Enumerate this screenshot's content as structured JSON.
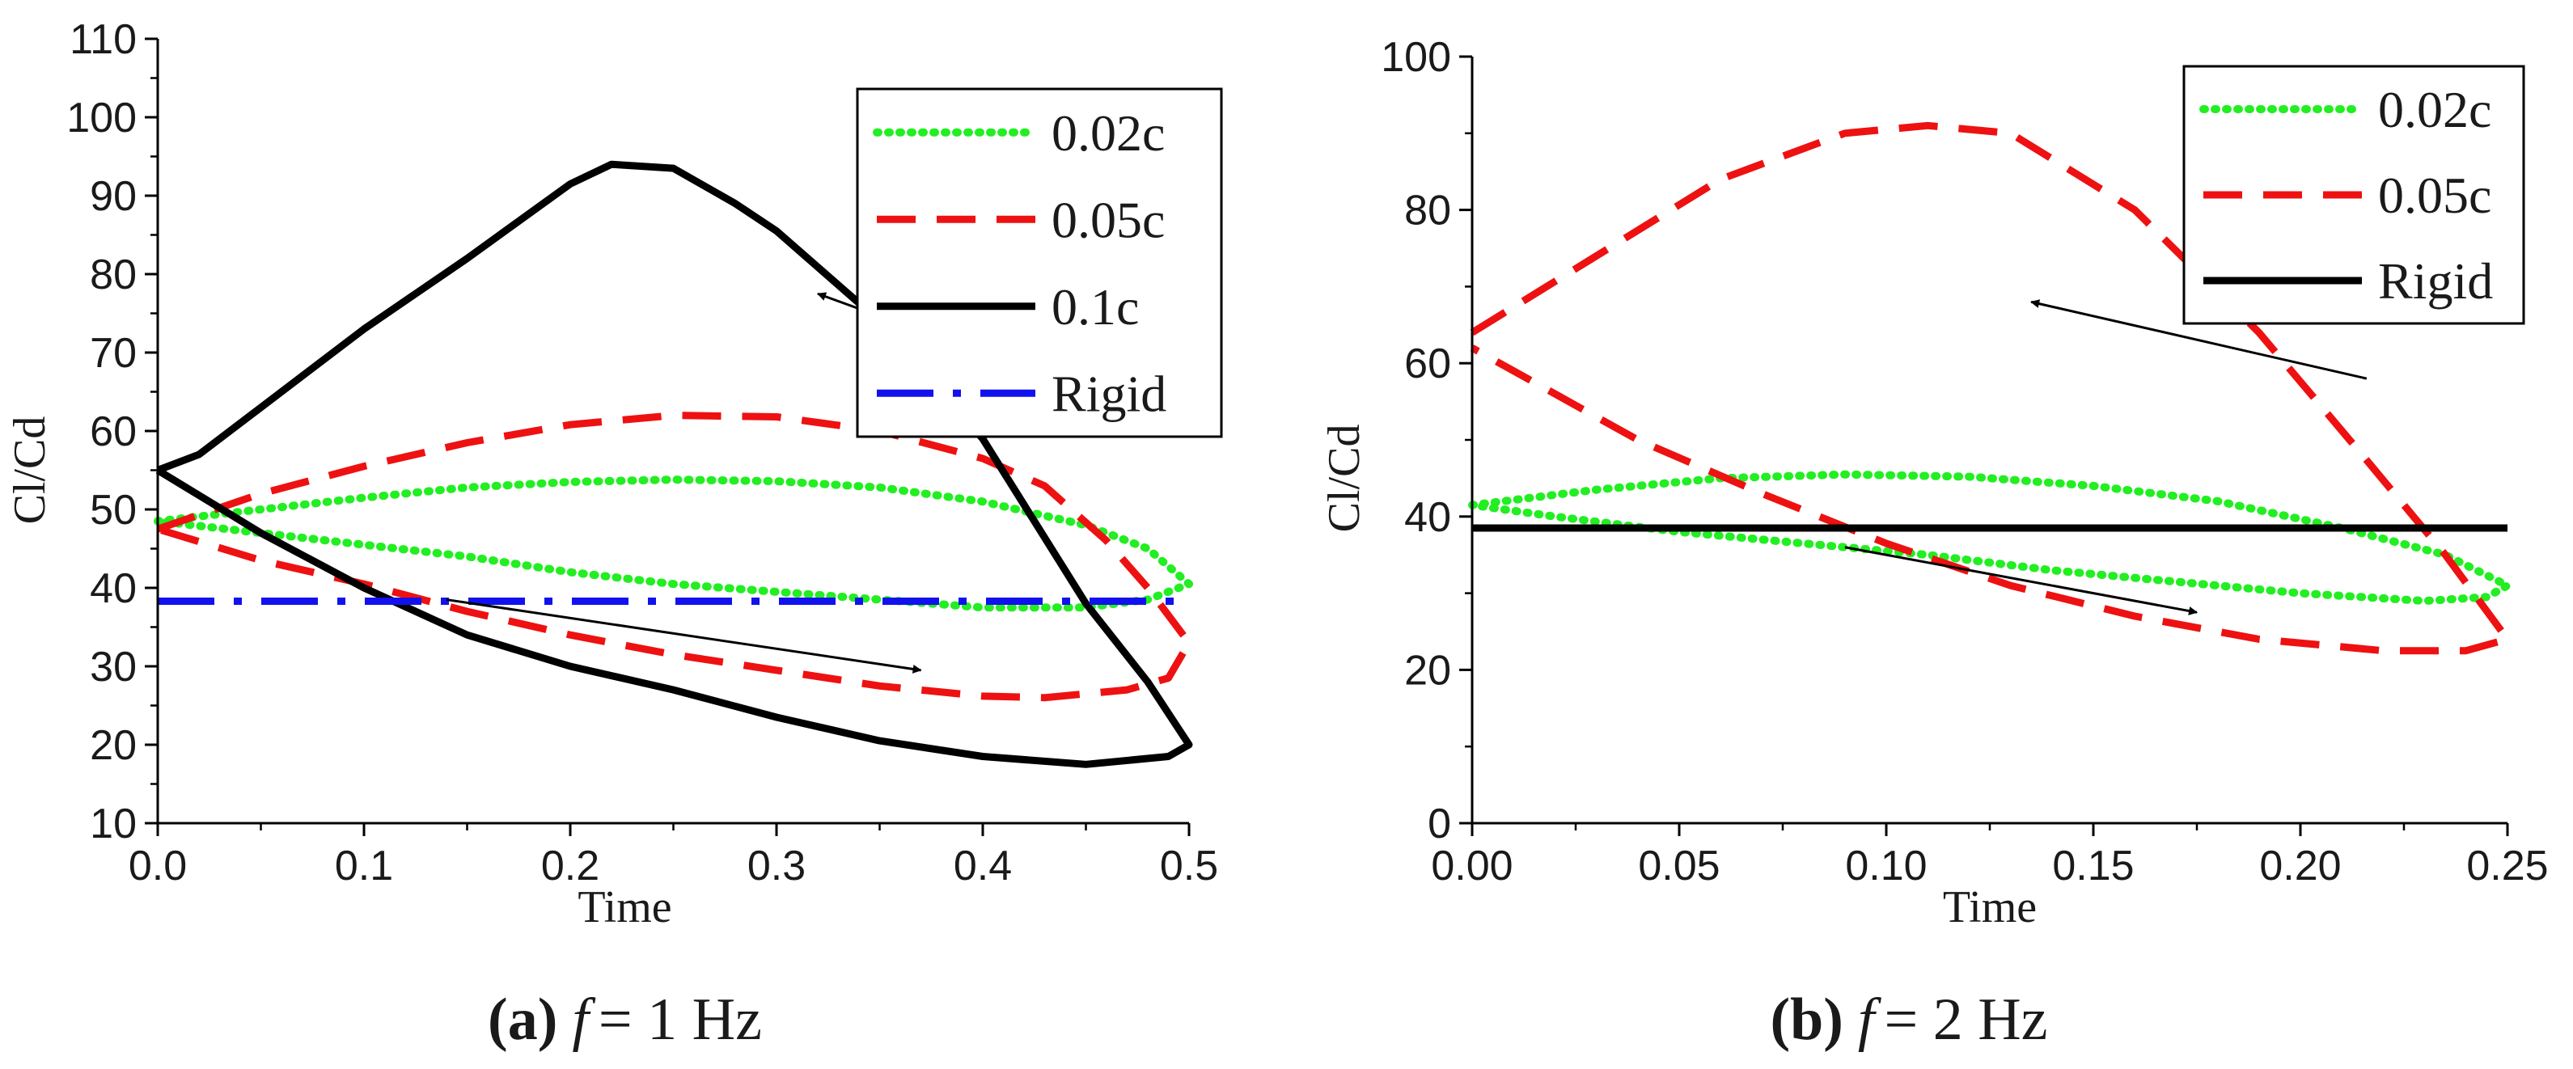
{
  "chart_data": [
    {
      "type": "line",
      "panel": "a",
      "caption": {
        "letter": "(a)",
        "italic": "f",
        "rest": "= 1 Hz"
      },
      "xlabel": "Time",
      "ylabel": "Cl/Cd",
      "xlim": [
        0.0,
        0.5
      ],
      "ylim": [
        10,
        110
      ],
      "xticks": [
        0.0,
        0.1,
        0.2,
        0.3,
        0.4,
        0.5
      ],
      "xtick_labels": [
        "0.0",
        "0.1",
        "0.2",
        "0.3",
        "0.4",
        "0.5"
      ],
      "yticks": [
        10,
        20,
        30,
        40,
        50,
        60,
        70,
        80,
        90,
        100,
        110
      ],
      "ytick_labels": [
        "10",
        "20",
        "30",
        "40",
        "50",
        "60",
        "70",
        "80",
        "90",
        "100",
        "110"
      ],
      "legend_position": "top-right",
      "series": [
        {
          "name": "0.02c",
          "color": "#22ee22",
          "style": "dotted",
          "points": [
            [
              0.0,
              48.5
            ],
            [
              0.05,
              50
            ],
            [
              0.1,
              51.5
            ],
            [
              0.15,
              52.8
            ],
            [
              0.2,
              53.5
            ],
            [
              0.25,
              53.8
            ],
            [
              0.3,
              53.6
            ],
            [
              0.35,
              52.8
            ],
            [
              0.4,
              51
            ],
            [
              0.45,
              48
            ],
            [
              0.48,
              45
            ],
            [
              0.5,
              40.5
            ],
            [
              0.48,
              38.5
            ],
            [
              0.45,
              37.5
            ],
            [
              0.4,
              37.5
            ],
            [
              0.35,
              38.5
            ],
            [
              0.3,
              39.5
            ],
            [
              0.25,
              40.5
            ],
            [
              0.2,
              42
            ],
            [
              0.15,
              44
            ],
            [
              0.1,
              45.5
            ],
            [
              0.05,
              47
            ],
            [
              0.0,
              48.5
            ]
          ]
        },
        {
          "name": "0.05c",
          "color": "#ee1111",
          "style": "dashed",
          "points": [
            [
              0.0,
              47.5
            ],
            [
              0.05,
              52
            ],
            [
              0.1,
              55.5
            ],
            [
              0.15,
              58.5
            ],
            [
              0.2,
              60.8
            ],
            [
              0.25,
              62
            ],
            [
              0.3,
              61.8
            ],
            [
              0.35,
              60
            ],
            [
              0.4,
              56.5
            ],
            [
              0.43,
              53
            ],
            [
              0.46,
              46
            ],
            [
              0.48,
              40
            ],
            [
              0.5,
              33
            ],
            [
              0.49,
              28.5
            ],
            [
              0.47,
              27
            ],
            [
              0.43,
              26
            ],
            [
              0.4,
              26.2
            ],
            [
              0.35,
              27.5
            ],
            [
              0.3,
              29.5
            ],
            [
              0.25,
              31.5
            ],
            [
              0.2,
              34
            ],
            [
              0.15,
              37
            ],
            [
              0.1,
              40.5
            ],
            [
              0.05,
              43.5
            ],
            [
              0.0,
              47.5
            ]
          ]
        },
        {
          "name": "0.1c",
          "color": "#000000",
          "style": "solid",
          "points": [
            [
              0.0,
              55
            ],
            [
              0.02,
              57
            ],
            [
              0.05,
              63
            ],
            [
              0.1,
              73
            ],
            [
              0.15,
              82
            ],
            [
              0.2,
              91.5
            ],
            [
              0.22,
              94
            ],
            [
              0.25,
              93.5
            ],
            [
              0.28,
              89
            ],
            [
              0.3,
              85.5
            ],
            [
              0.35,
              74
            ],
            [
              0.4,
              59
            ],
            [
              0.45,
              38
            ],
            [
              0.48,
              28
            ],
            [
              0.5,
              20
            ],
            [
              0.49,
              18.5
            ],
            [
              0.45,
              17.5
            ],
            [
              0.4,
              18.5
            ],
            [
              0.35,
              20.5
            ],
            [
              0.3,
              23.5
            ],
            [
              0.25,
              27
            ],
            [
              0.2,
              30
            ],
            [
              0.15,
              34
            ],
            [
              0.1,
              40
            ],
            [
              0.05,
              47
            ],
            [
              0.0,
              55
            ]
          ]
        },
        {
          "name": "Rigid",
          "color": "#1111ee",
          "style": "dashdot",
          "points": [
            [
              0.0,
              38.3
            ],
            [
              0.5,
              38.3
            ]
          ]
        }
      ],
      "annotations": [
        {
          "type": "arrow",
          "from": [
            0.43,
            67
          ],
          "to": [
            0.32,
            77.5
          ]
        },
        {
          "type": "arrow",
          "from": [
            0.14,
            38.5
          ],
          "to": [
            0.37,
            29.5
          ]
        }
      ]
    },
    {
      "type": "line",
      "panel": "b",
      "caption": {
        "letter": "(b)",
        "italic": "f",
        "rest": "= 2 Hz"
      },
      "xlabel": "Time",
      "ylabel": "Cl/Cd",
      "xlim": [
        0.0,
        0.25
      ],
      "ylim": [
        0,
        100
      ],
      "xticks": [
        0.0,
        0.05,
        0.1,
        0.15,
        0.2,
        0.25
      ],
      "xtick_labels": [
        "0.00",
        "0.05",
        "0.10",
        "0.15",
        "0.20",
        "0.25"
      ],
      "yticks": [
        0,
        20,
        40,
        60,
        80,
        100
      ],
      "ytick_labels": [
        "0",
        "20",
        "40",
        "60",
        "80",
        "100"
      ],
      "legend_position": "top-right",
      "series": [
        {
          "name": "0.02c",
          "color": "#22ee22",
          "style": "dotted",
          "points": [
            [
              0.0,
              41.5
            ],
            [
              0.03,
              43.5
            ],
            [
              0.06,
              45
            ],
            [
              0.09,
              45.5
            ],
            [
              0.12,
              45.2
            ],
            [
              0.15,
              44
            ],
            [
              0.18,
              42
            ],
            [
              0.21,
              38.5
            ],
            [
              0.235,
              35
            ],
            [
              0.25,
              31
            ],
            [
              0.245,
              29.5
            ],
            [
              0.23,
              29
            ],
            [
              0.2,
              30
            ],
            [
              0.17,
              31.5
            ],
            [
              0.14,
              33
            ],
            [
              0.11,
              35
            ],
            [
              0.08,
              36.5
            ],
            [
              0.05,
              38
            ],
            [
              0.02,
              40
            ],
            [
              0.0,
              41.5
            ]
          ]
        },
        {
          "name": "0.05c",
          "color": "#ee1111",
          "style": "dashed",
          "points": [
            [
              0.0,
              64
            ],
            [
              0.03,
              74
            ],
            [
              0.06,
              84
            ],
            [
              0.09,
              90
            ],
            [
              0.11,
              91
            ],
            [
              0.13,
              90
            ],
            [
              0.16,
              80
            ],
            [
              0.19,
              64
            ],
            [
              0.215,
              48
            ],
            [
              0.235,
              35
            ],
            [
              0.25,
              24
            ],
            [
              0.24,
              22.5
            ],
            [
              0.22,
              22.5
            ],
            [
              0.19,
              24
            ],
            [
              0.16,
              27
            ],
            [
              0.13,
              31
            ],
            [
              0.1,
              36.5
            ],
            [
              0.07,
              43
            ],
            [
              0.04,
              50
            ],
            [
              0.02,
              56
            ],
            [
              0.0,
              62
            ]
          ]
        },
        {
          "name": "Rigid",
          "color": "#000000",
          "style": "solid",
          "points": [
            [
              0.0,
              38.5
            ],
            [
              0.25,
              38.5
            ]
          ]
        }
      ],
      "annotations": [
        {
          "type": "arrow",
          "from": [
            0.216,
            58
          ],
          "to": [
            0.135,
            68
          ]
        },
        {
          "type": "arrow",
          "from": [
            0.09,
            36
          ],
          "to": [
            0.175,
            27.5
          ]
        }
      ]
    }
  ]
}
